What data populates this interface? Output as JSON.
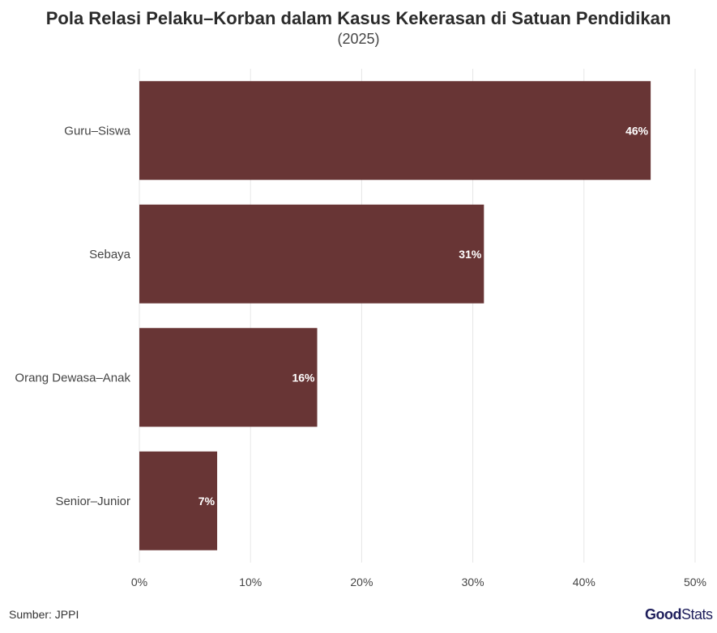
{
  "chart_data": {
    "type": "bar",
    "orientation": "horizontal",
    "title": "Pola Relasi Pelaku–Korban dalam Kasus Kekerasan di Satuan Pendidikan",
    "subtitle": "(2025)",
    "categories": [
      "Guru–Siswa",
      "Sebaya",
      "Orang Dewasa–Anak",
      "Senior–Junior"
    ],
    "values": [
      46,
      31,
      16,
      7
    ],
    "data_labels": [
      "46%",
      "31%",
      "16%",
      "7%"
    ],
    "xlim": [
      0,
      50
    ],
    "x_ticks": [
      0,
      10,
      20,
      30,
      40,
      50
    ],
    "x_tick_labels": [
      "0%",
      "10%",
      "20%",
      "30%",
      "40%",
      "50%"
    ],
    "grid": true,
    "bar_color": "#683535",
    "grid_color": "#e6e6e6"
  },
  "footer": {
    "source": "Sumber: JPPI",
    "logo_good": "Good",
    "logo_stats": "Stats"
  }
}
